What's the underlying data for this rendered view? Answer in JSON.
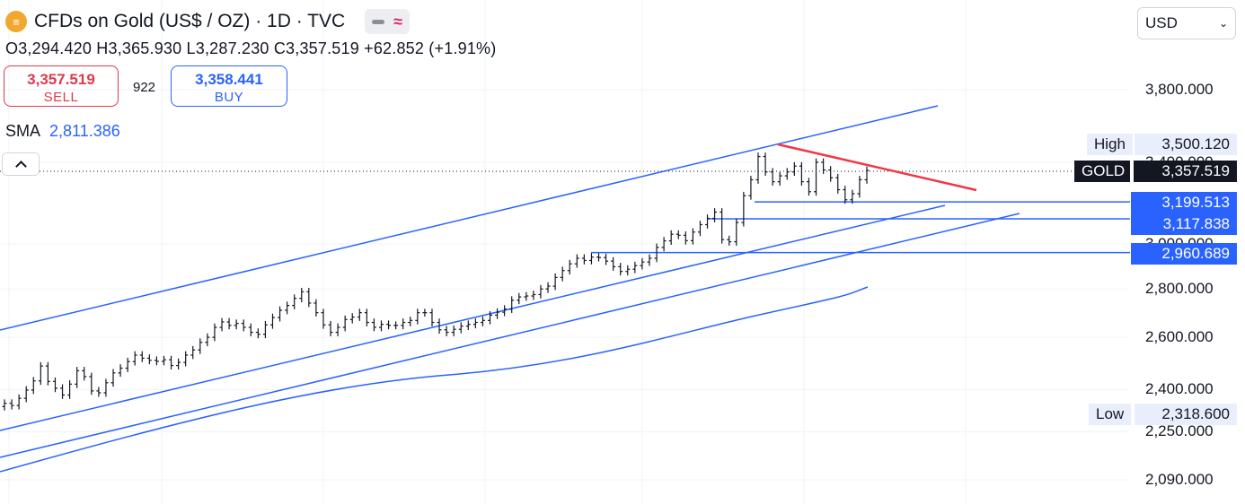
{
  "header": {
    "symbol_logo_icon": "gold-bars-icon",
    "title": "CFDs on Gold (US$ / OZ) · 1D · TVC",
    "ohlc": "O3,294.420 H3,365.930 L3,287.230 C3,357.519 +62.852 (+1.91%)"
  },
  "trade": {
    "sell_price": "3,357.519",
    "sell_label": "SELL",
    "spread": "922",
    "buy_price": "3,358.441",
    "buy_label": "BUY"
  },
  "indicator": {
    "name": "SMA",
    "value": "2,811.386"
  },
  "currency_select": {
    "value": "USD"
  },
  "colors": {
    "up_trend": "#2962ff",
    "down_trend": "#f23645",
    "candles": "#131722"
  },
  "chart_data": {
    "type": "candlestick",
    "title": "CFDs on Gold (US$ / OZ) · 1D · TVC",
    "ylim": [
      2000,
      3970
    ],
    "y_scale": "log",
    "y_ticks": [
      "3,800.000",
      "3,400.000",
      "3,000.000",
      "2,800.000",
      "2,600.000",
      "2,400.000",
      "2,250.000",
      "2,090.000"
    ],
    "y_tick_values": [
      3800,
      3400,
      3000,
      2800,
      2600,
      2400,
      2250,
      2090
    ],
    "price_labels": {
      "high_label": "High",
      "high_value": "3,500.120",
      "current_label": "GOLD",
      "current_value": "3,357.519",
      "low_label": "Low",
      "low_value": "2,318.600",
      "levels": [
        "3,199.513",
        "3,117.838",
        "2,960.689"
      ],
      "level_values": [
        3199.513,
        3117.838,
        2960.689
      ]
    },
    "closes": [
      2350,
      2342,
      2368,
      2398,
      2432,
      2488,
      2430,
      2405,
      2380,
      2420,
      2470,
      2448,
      2395,
      2388,
      2425,
      2462,
      2480,
      2505,
      2530,
      2518,
      2510,
      2506,
      2512,
      2490,
      2502,
      2530,
      2550,
      2580,
      2600,
      2640,
      2662,
      2648,
      2656,
      2640,
      2620,
      2612,
      2650,
      2680,
      2710,
      2730,
      2760,
      2788,
      2740,
      2700,
      2650,
      2620,
      2640,
      2672,
      2682,
      2700,
      2660,
      2640,
      2652,
      2648,
      2648,
      2660,
      2668,
      2700,
      2700,
      2660,
      2630,
      2620,
      2632,
      2645,
      2652,
      2660,
      2668,
      2690,
      2702,
      2715,
      2752,
      2766,
      2770,
      2776,
      2800,
      2812,
      2850,
      2880,
      2910,
      2935,
      2925,
      2940,
      2938,
      2922,
      2897,
      2876,
      2886,
      2902,
      2918,
      2935,
      2984,
      3014,
      3045,
      3040,
      3015,
      3055,
      3090,
      3120,
      3150,
      3020,
      3010,
      3100,
      3230,
      3310,
      3430,
      3350,
      3300,
      3330,
      3350,
      3380,
      3300,
      3250,
      3400,
      3360,
      3320,
      3260,
      3210,
      3240,
      3310,
      3357.5
    ],
    "trendlines_note": "ascending channel (blue) and descending resistance (red)",
    "sma_series_name": "SMA"
  }
}
